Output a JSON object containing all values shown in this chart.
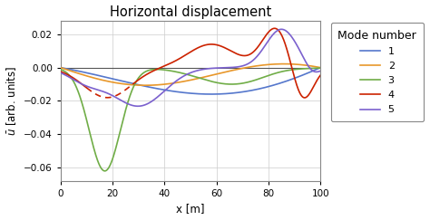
{
  "title": "Horizontal displacement",
  "xlabel": "x [m]",
  "ylabel": "$\\bar{u}$ [arb. units]",
  "xlim": [
    0,
    100
  ],
  "ylim": [
    -0.068,
    0.028
  ],
  "yticks": [
    -0.06,
    -0.04,
    -0.02,
    0.0,
    0.02
  ],
  "xticks": [
    0,
    20,
    40,
    60,
    80,
    100
  ],
  "colors": {
    "mode1": "#5577CC",
    "mode2": "#E8972A",
    "mode3": "#70AD47",
    "mode4": "#CC2200",
    "mode5": "#7B61CE"
  },
  "legend_title": "Mode number",
  "legend_labels": [
    "1",
    "2",
    "3",
    "4",
    "5"
  ],
  "background_color": "#FFFFFF",
  "grid_color": "#CCCCCC"
}
